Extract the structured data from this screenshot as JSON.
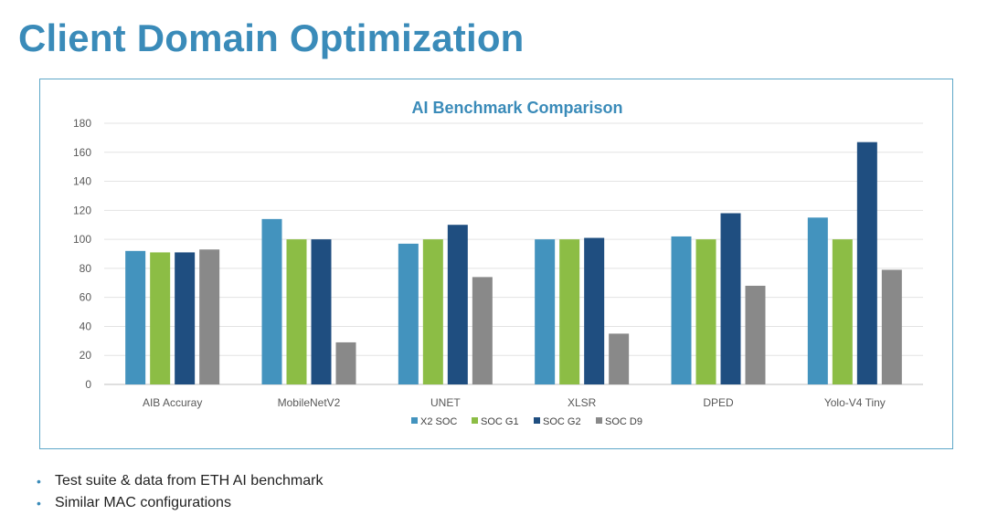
{
  "slide": {
    "title": "Client Domain Optimization",
    "bullets": [
      "Test suite & data from ETH AI benchmark",
      "Similar MAC configurations"
    ]
  },
  "colors": {
    "title": "#3a8bb9",
    "frame": "#5ea7c8",
    "series": [
      "#4393be",
      "#8cbd45",
      "#1f4e80",
      "#898989"
    ]
  },
  "chart_data": {
    "type": "bar",
    "title": "AI Benchmark Comparison",
    "xlabel": "",
    "ylabel": "",
    "ylim": [
      0,
      180
    ],
    "yticks": [
      0,
      20,
      40,
      60,
      80,
      100,
      120,
      140,
      160,
      180
    ],
    "grid": true,
    "legend_position": "bottom",
    "categories": [
      "AIB Accuray",
      "MobileNetV2",
      "UNET",
      "XLSR",
      "DPED",
      "Yolo-V4 Tiny"
    ],
    "series": [
      {
        "name": "X2 SOC",
        "values": [
          92,
          114,
          97,
          100,
          102,
          115
        ]
      },
      {
        "name": "SOC G1",
        "values": [
          91,
          100,
          100,
          100,
          100,
          100
        ]
      },
      {
        "name": "SOC G2",
        "values": [
          91,
          100,
          110,
          101,
          118,
          167
        ]
      },
      {
        "name": "SOC D9",
        "values": [
          93,
          29,
          74,
          35,
          68,
          79
        ]
      }
    ]
  }
}
